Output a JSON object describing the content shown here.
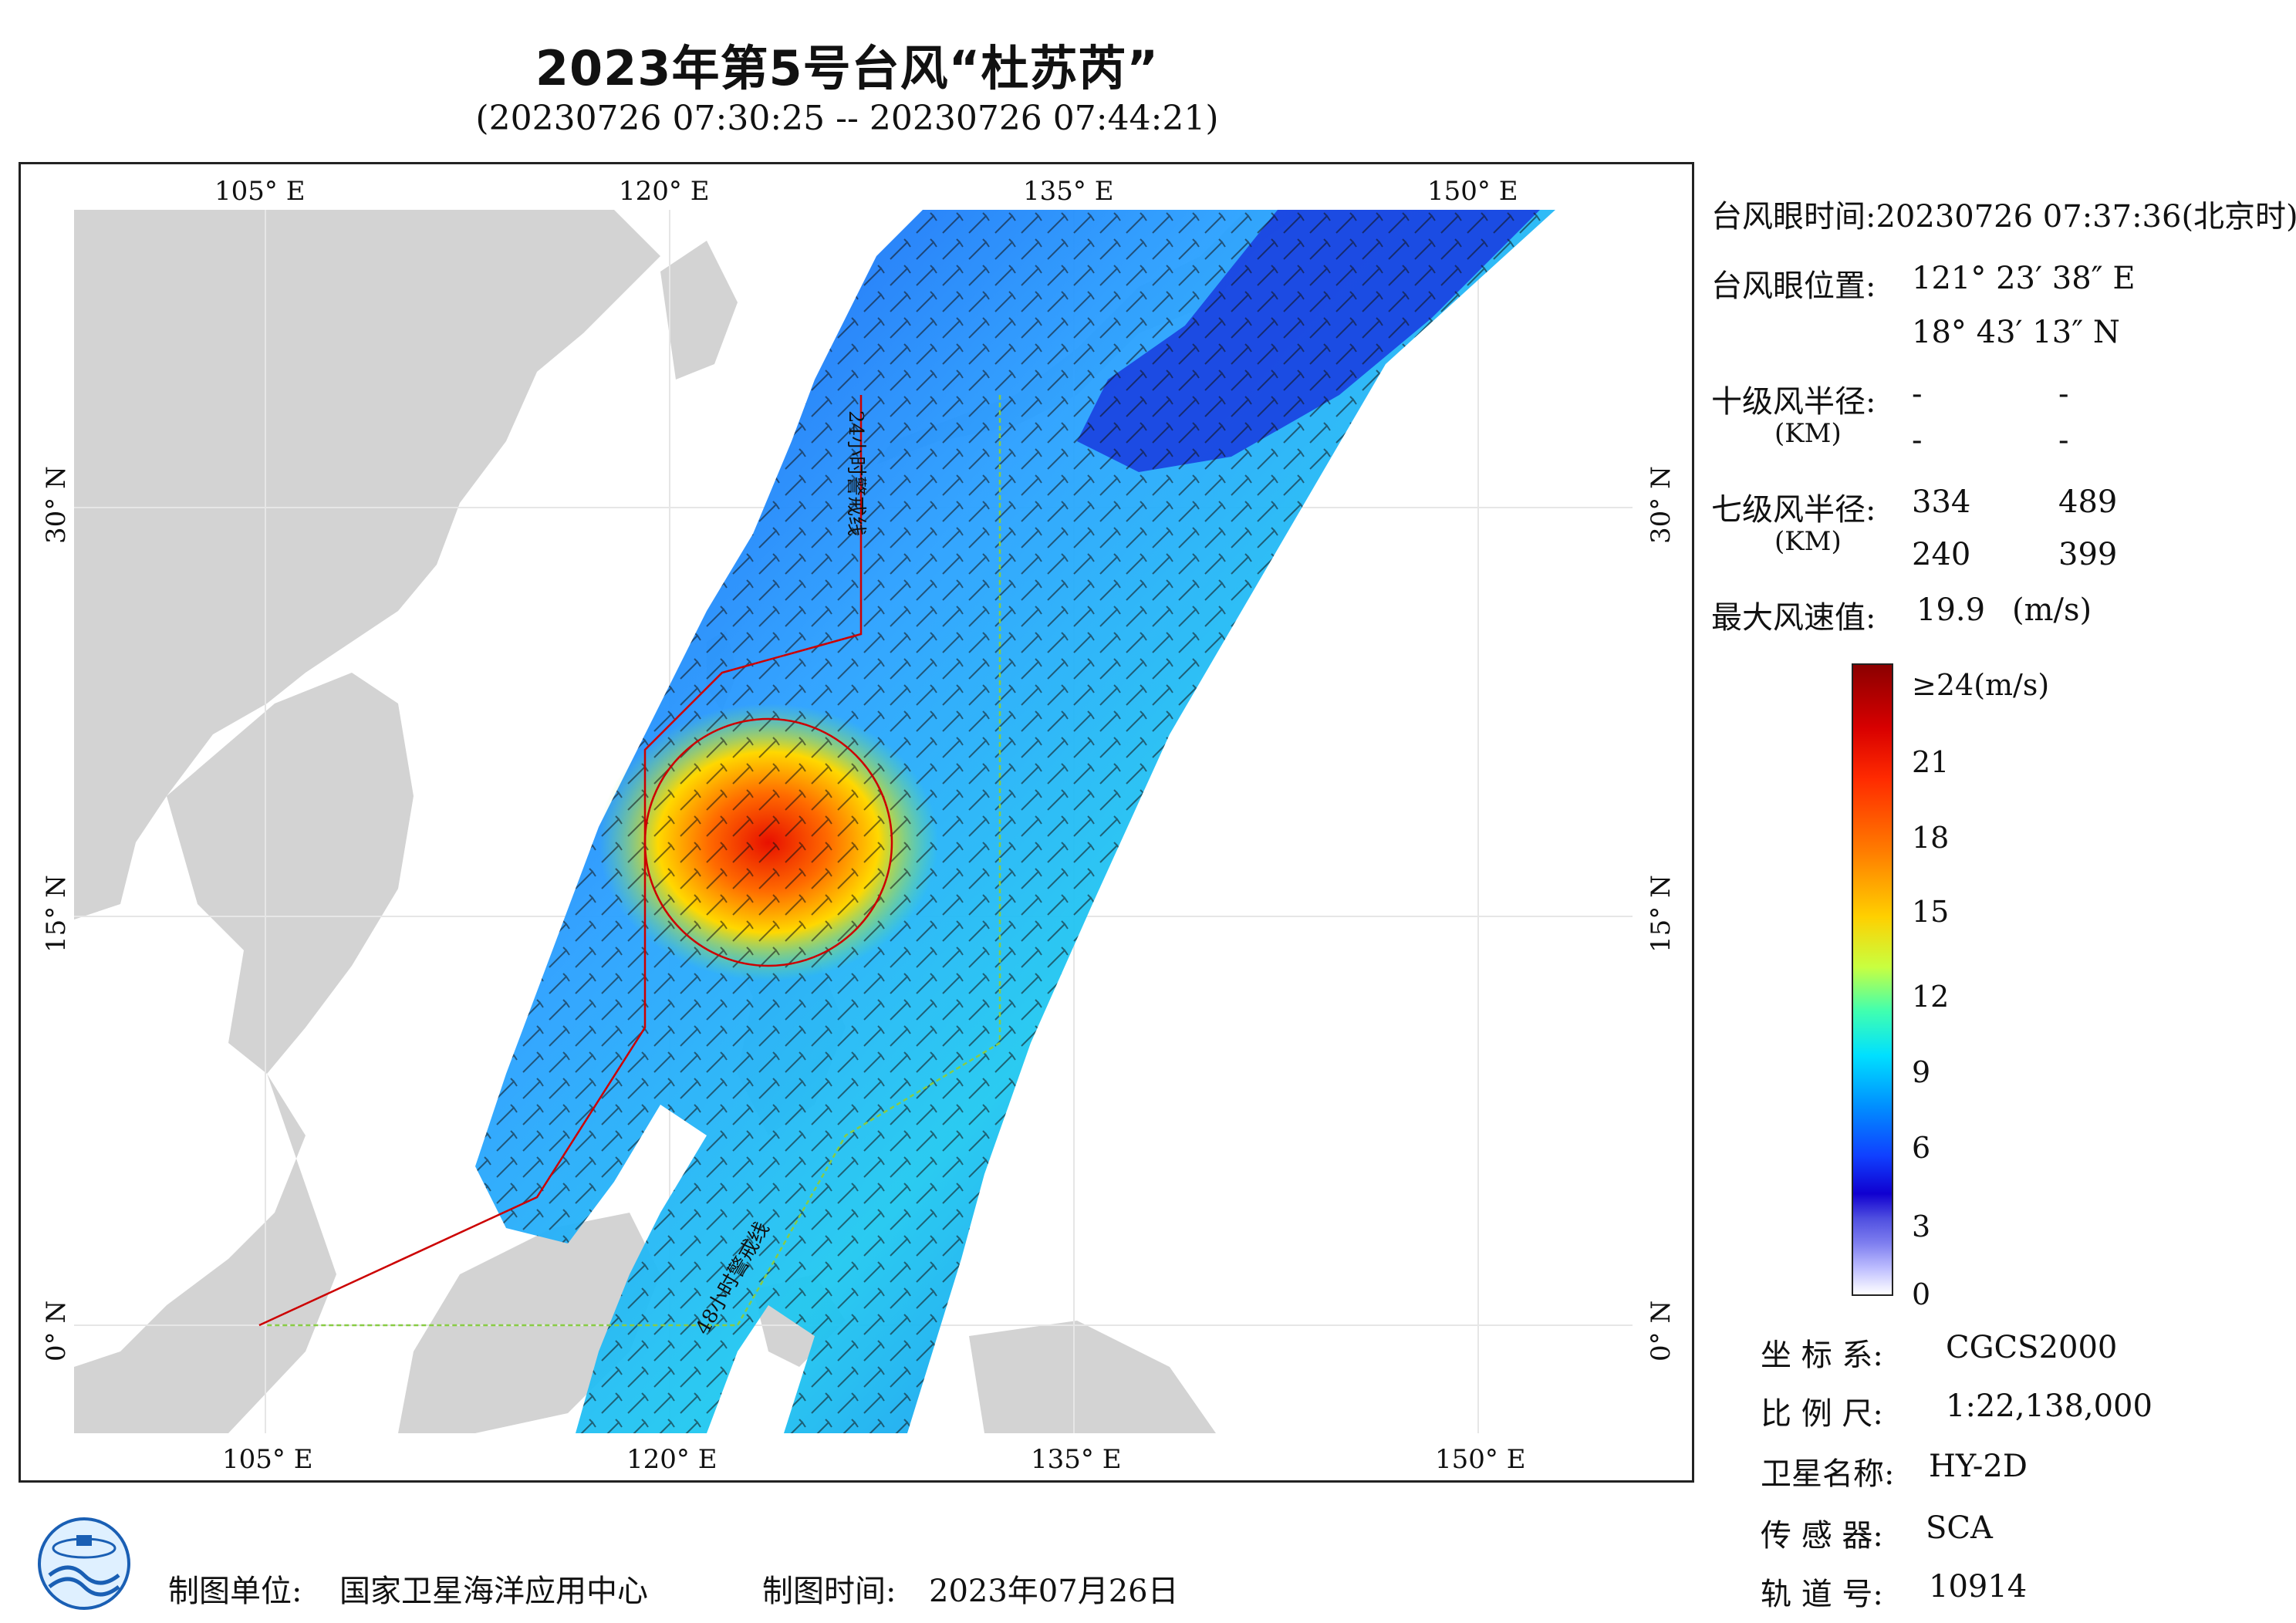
{
  "header": {
    "title": "2023年第5号台风“杜苏芮”",
    "subtitle": "(20230726 07:30:25 -- 20230726 07:44:21)"
  },
  "map": {
    "lon_ticks_top": [
      "105° E",
      "120° E",
      "135° E",
      "150° E"
    ],
    "lon_ticks_bottom": [
      "105° E",
      "120° E",
      "135° E",
      "150° E"
    ],
    "lat_ticks_left": [
      "30° N",
      "15° N",
      "0° N"
    ],
    "lat_ticks_right": [
      "30° N",
      "15° N",
      "0° N"
    ],
    "warning_line_24h": "24小时警戒线",
    "warning_line_48h": "48小时警戒线",
    "colors": {
      "land": "#d3d3d3",
      "sea": "#ffffff",
      "warning24": "#cc0000",
      "warning48": "#88cc44"
    }
  },
  "info": {
    "eye_time_label": "台风眼时间:",
    "eye_time_value": "20230726 07:37:36(北京时)",
    "eye_pos_label": "台风眼位置:",
    "eye_lon": "121° 23′ 38″ E",
    "eye_lat": "18° 43′ 13″ N",
    "r10_label": "十级风半径:",
    "r10_unit": "(KM)",
    "r10_values": [
      "-",
      "-",
      "-",
      "-"
    ],
    "r7_label": "七级风半径:",
    "r7_unit": "(KM)",
    "r7_values": [
      "334",
      "489",
      "240",
      "399"
    ],
    "max_label": "最大风速值:",
    "max_value": "19.9",
    "max_unit": "(m/s)"
  },
  "colorbar": {
    "labels": [
      "≥24(m/s)",
      "21",
      "18",
      "15",
      "12",
      "9",
      "6",
      "3",
      "0"
    ]
  },
  "meta": {
    "crs_label": "坐 标 系:",
    "crs_value": "CGCS2000",
    "scale_label": "比 例 尺:",
    "scale_value": "1:22,138,000",
    "sat_label": "卫星名称:",
    "sat_value": "HY-2D",
    "sensor_label": "传 感 器:",
    "sensor_value": "SCA",
    "orbit_label": "轨 道 号:",
    "orbit_value": "10914"
  },
  "footer": {
    "org_label": "制图单位:",
    "org_value": "国家卫星海洋应用中心",
    "date_label": "制图时间:",
    "date_value": "2023年07月26日"
  }
}
